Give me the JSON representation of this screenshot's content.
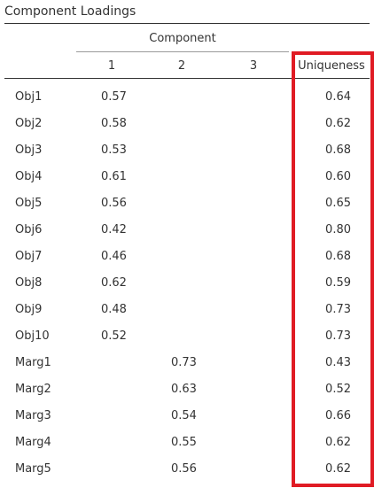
{
  "table": {
    "title": "Component Loadings",
    "group_header": "Component",
    "columns": [
      "1",
      "2",
      "3",
      "Uniqueness"
    ],
    "rows": [
      {
        "label": "Obj1",
        "c1": "0.57",
        "c2": "",
        "c3": "",
        "uniqueness": "0.64"
      },
      {
        "label": "Obj2",
        "c1": "0.58",
        "c2": "",
        "c3": "",
        "uniqueness": "0.62"
      },
      {
        "label": "Obj3",
        "c1": "0.53",
        "c2": "",
        "c3": "",
        "uniqueness": "0.68"
      },
      {
        "label": "Obj4",
        "c1": "0.61",
        "c2": "",
        "c3": "",
        "uniqueness": "0.60"
      },
      {
        "label": "Obj5",
        "c1": "0.56",
        "c2": "",
        "c3": "",
        "uniqueness": "0.65"
      },
      {
        "label": "Obj6",
        "c1": "0.42",
        "c2": "",
        "c3": "",
        "uniqueness": "0.80"
      },
      {
        "label": "Obj7",
        "c1": "0.46",
        "c2": "",
        "c3": "",
        "uniqueness": "0.68"
      },
      {
        "label": "Obj8",
        "c1": "0.62",
        "c2": "",
        "c3": "",
        "uniqueness": "0.59"
      },
      {
        "label": "Obj9",
        "c1": "0.48",
        "c2": "",
        "c3": "",
        "uniqueness": "0.73"
      },
      {
        "label": "Obj10",
        "c1": "0.52",
        "c2": "",
        "c3": "",
        "uniqueness": "0.73"
      },
      {
        "label": "Marg1",
        "c1": "",
        "c2": "0.73",
        "c3": "",
        "uniqueness": "0.43"
      },
      {
        "label": "Marg2",
        "c1": "",
        "c2": "0.63",
        "c3": "",
        "uniqueness": "0.52"
      },
      {
        "label": "Marg3",
        "c1": "",
        "c2": "0.54",
        "c3": "",
        "uniqueness": "0.66"
      },
      {
        "label": "Marg4",
        "c1": "",
        "c2": "0.55",
        "c3": "",
        "uniqueness": "0.62"
      },
      {
        "label": "Marg5",
        "c1": "",
        "c2": "0.56",
        "c3": "",
        "uniqueness": "0.62"
      }
    ]
  },
  "highlight": {
    "target_column": "Uniqueness",
    "color": "#e01b24"
  }
}
